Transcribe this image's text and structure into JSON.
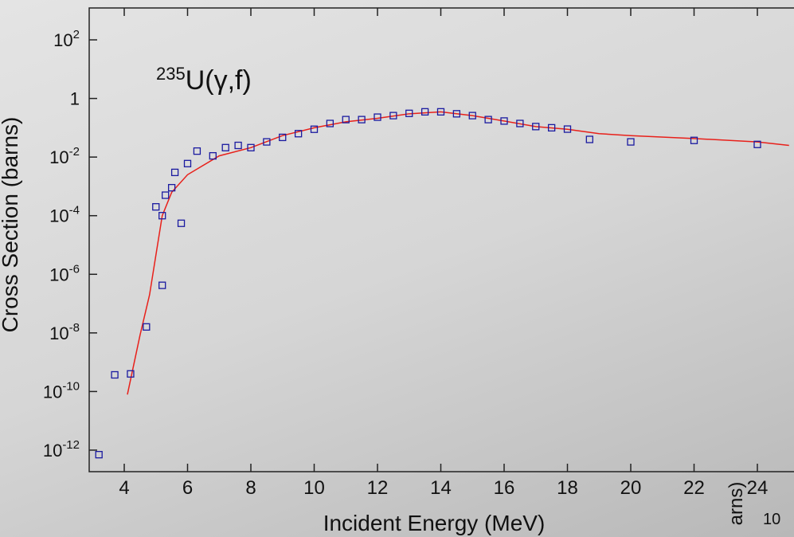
{
  "chart_data": {
    "type": "scatter",
    "annotation": {
      "superscript": "235",
      "text": "U(γ,f)"
    },
    "x_label": "Incident Energy (MeV)",
    "y_label": "Cross Section (barns)",
    "fragments": [
      "arns)",
      "10"
    ],
    "log_y": true,
    "xlim": [
      2.893,
      25.157
    ],
    "ylim": [
      1.84e-13,
      1225
    ],
    "xticks": [
      4,
      6,
      8,
      10,
      12,
      14,
      16,
      18,
      20,
      22,
      24
    ],
    "yticks": [
      {
        "value": 100,
        "label": "10",
        "exponent": "2"
      },
      1,
      {
        "value": 0.01,
        "label": "10",
        "exponent": "-2"
      },
      {
        "value": 0.0001,
        "label": "10",
        "exponent": "-4"
      },
      {
        "value": 1e-06,
        "label": "10",
        "exponent": "-6"
      },
      {
        "value": 1e-08,
        "label": "10",
        "exponent": "-8"
      },
      {
        "value": 1e-10,
        "label": "10",
        "exponent": "-10"
      },
      {
        "value": 1e-12,
        "label": "10",
        "exponent": "-12"
      }
    ],
    "series": [
      {
        "kind": "line",
        "color": "#e8201a",
        "x": [
          4.1,
          4.5,
          4.8,
          5.0,
          5.2,
          5.5,
          6,
          7,
          8,
          9,
          10,
          11,
          12,
          13,
          14,
          15,
          16,
          17,
          18,
          19,
          20,
          22,
          24,
          25
        ],
        "values": [
          7.9e-11,
          8.5e-09,
          2e-07,
          4.5e-06,
          0.0001,
          0.00063,
          0.0025,
          0.011,
          0.021,
          0.054,
          0.1,
          0.16,
          0.21,
          0.3,
          0.35,
          0.26,
          0.17,
          0.11,
          0.089,
          0.063,
          0.054,
          0.043,
          0.033,
          0.025
        ]
      },
      {
        "kind": "points",
        "color": "#1a1aa0",
        "x": [
          3.2,
          3.7,
          4.2,
          4.7,
          5.2,
          5.0,
          5.2,
          5.3,
          5.5,
          5.8,
          5.6,
          6,
          6.3,
          6.8,
          7.2,
          7.6,
          8.0,
          8.5,
          9,
          9.5,
          10,
          10.5,
          11,
          11.5,
          12,
          12.5,
          13,
          13.5,
          14,
          14.5,
          15,
          15.5,
          16,
          16.5,
          17,
          17.5,
          18,
          18.7,
          20,
          22,
          24
        ],
        "values": [
          7e-13,
          3.7e-10,
          4e-10,
          1.6e-08,
          4.2e-07,
          0.0002,
          0.0001,
          0.0005,
          0.0009,
          5.5e-05,
          0.003,
          0.006,
          0.016,
          0.011,
          0.021,
          0.025,
          0.021,
          0.033,
          0.047,
          0.063,
          0.089,
          0.14,
          0.19,
          0.19,
          0.23,
          0.26,
          0.31,
          0.35,
          0.35,
          0.3,
          0.26,
          0.19,
          0.17,
          0.14,
          0.11,
          0.1,
          0.09,
          0.04,
          0.033,
          0.037,
          0.027
        ]
      }
    ]
  }
}
